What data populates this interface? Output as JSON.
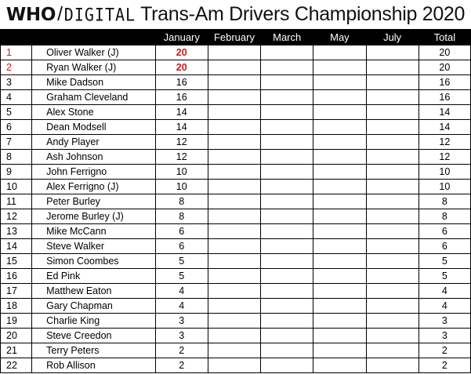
{
  "title": {
    "brand_who": "WHO",
    "brand_slash": "/",
    "brand_digital": "DIGITAL",
    "text": "Trans-Am Drivers Championship 2020"
  },
  "columns": [
    "",
    "",
    "January",
    "February",
    "March",
    "May",
    "July",
    "Total"
  ],
  "highlight_color": "#d01818",
  "rows": [
    [
      "1",
      "Oliver Walker (J)",
      "20",
      "",
      "",
      "",
      "",
      "20"
    ],
    [
      "2",
      "Ryan Walker (J)",
      "20",
      "",
      "",
      "",
      "",
      "20"
    ],
    [
      "3",
      "Mike Dadson",
      "16",
      "",
      "",
      "",
      "",
      "16"
    ],
    [
      "4",
      "Graham Cleveland",
      "16",
      "",
      "",
      "",
      "",
      "16"
    ],
    [
      "5",
      "Alex Stone",
      "14",
      "",
      "",
      "",
      "",
      "14"
    ],
    [
      "6",
      "Dean Modsell",
      "14",
      "",
      "",
      "",
      "",
      "14"
    ],
    [
      "7",
      "Andy Player",
      "12",
      "",
      "",
      "",
      "",
      "12"
    ],
    [
      "8",
      "Ash Johnson",
      "12",
      "",
      "",
      "",
      "",
      "12"
    ],
    [
      "9",
      "John Ferrigno",
      "10",
      "",
      "",
      "",
      "",
      "10"
    ],
    [
      "10",
      "Alex Ferrigno (J)",
      "10",
      "",
      "",
      "",
      "",
      "10"
    ],
    [
      "11",
      "Peter Burley",
      "8",
      "",
      "",
      "",
      "",
      "8"
    ],
    [
      "12",
      "Jerome Burley (J)",
      "8",
      "",
      "",
      "",
      "",
      "8"
    ],
    [
      "13",
      "Mike McCann",
      "6",
      "",
      "",
      "",
      "",
      "6"
    ],
    [
      "14",
      "Steve Walker",
      "6",
      "",
      "",
      "",
      "",
      "6"
    ],
    [
      "15",
      "Simon Coombes",
      "5",
      "",
      "",
      "",
      "",
      "5"
    ],
    [
      "16",
      "Ed Pink",
      "5",
      "",
      "",
      "",
      "",
      "5"
    ],
    [
      "17",
      "Matthew Eaton",
      "4",
      "",
      "",
      "",
      "",
      "4"
    ],
    [
      "18",
      "Gary Chapman",
      "4",
      "",
      "",
      "",
      "",
      "4"
    ],
    [
      "19",
      "Charlie King",
      "3",
      "",
      "",
      "",
      "",
      "3"
    ],
    [
      "20",
      "Steve Creedon",
      "3",
      "",
      "",
      "",
      "",
      "3"
    ],
    [
      "21",
      "Terry Peters",
      "2",
      "",
      "",
      "",
      "",
      "2"
    ],
    [
      "22",
      "Rob Allison",
      "2",
      "",
      "",
      "",
      "",
      "2"
    ]
  ]
}
